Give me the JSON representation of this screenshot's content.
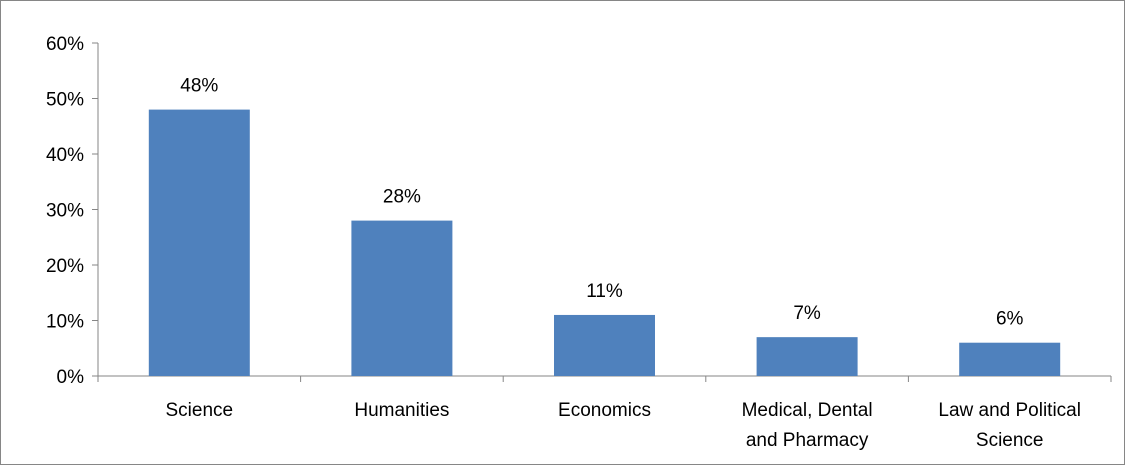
{
  "chart_data": {
    "type": "bar",
    "title": "",
    "xlabel": "",
    "ylabel": "",
    "categories": [
      [
        "Science"
      ],
      [
        "Humanities"
      ],
      [
        "Economics"
      ],
      [
        "Medical, Dental",
        "and Pharmacy"
      ],
      [
        "Law and Political",
        "Science"
      ]
    ],
    "values": [
      48,
      28,
      11,
      7,
      6
    ],
    "data_labels": [
      "48%",
      "28%",
      "11%",
      "7%",
      "6%"
    ],
    "ylim": [
      0,
      60
    ],
    "yticks": [
      0,
      10,
      20,
      30,
      40,
      50,
      60
    ],
    "ytick_labels": [
      "0%",
      "10%",
      "20%",
      "30%",
      "40%",
      "50%",
      "60%"
    ],
    "grid": false,
    "legend": "none",
    "bar_color": "#4F81BD",
    "axis_color": "#868686"
  }
}
